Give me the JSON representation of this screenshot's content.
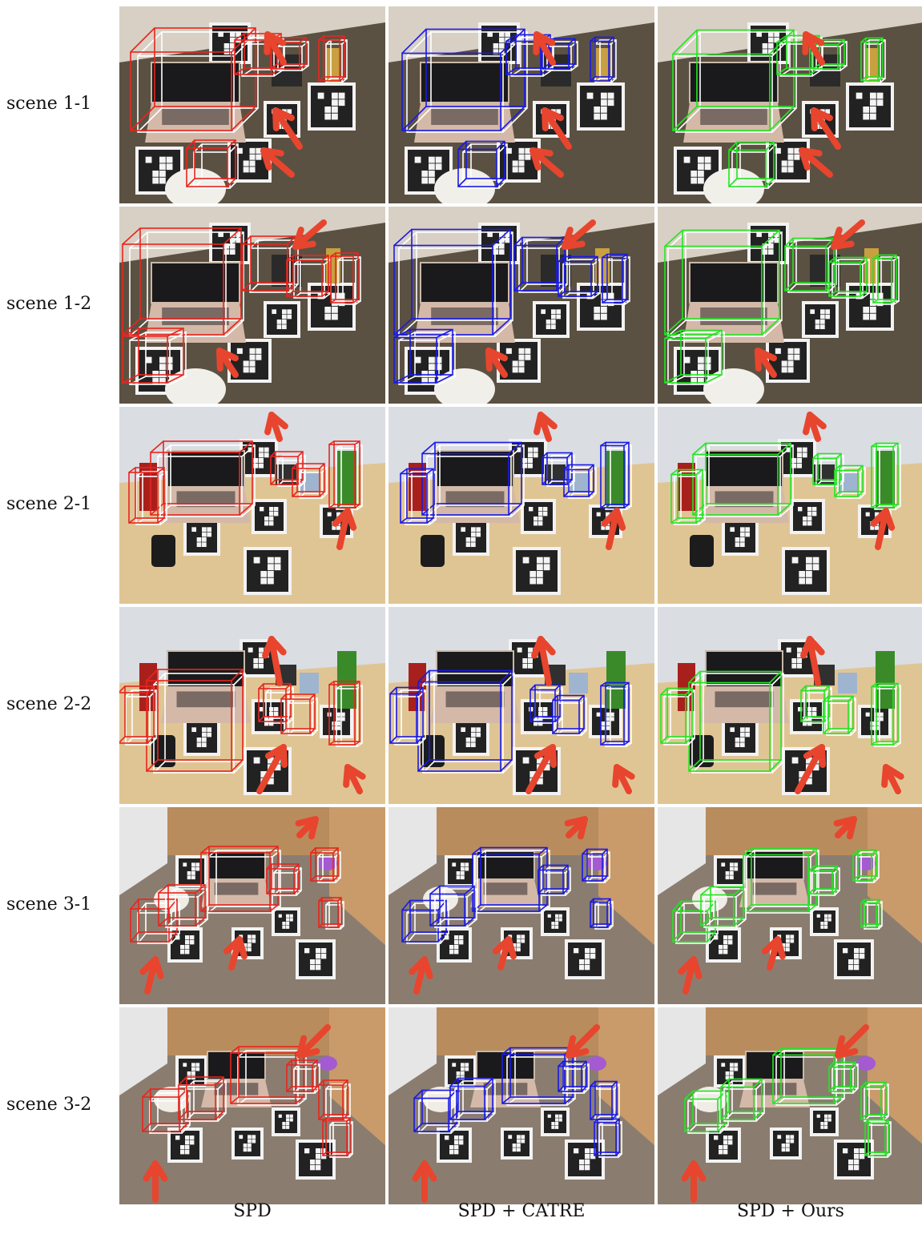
{
  "rows": [
    {
      "label": "scene 1-1",
      "theme": "carpet"
    },
    {
      "label": "scene 1-2",
      "theme": "carpet"
    },
    {
      "label": "scene 2-1",
      "theme": "table"
    },
    {
      "label": "scene 2-2",
      "theme": "table"
    },
    {
      "label": "scene 3-1",
      "theme": "floor"
    },
    {
      "label": "scene 3-2",
      "theme": "floor"
    }
  ],
  "columns": [
    {
      "label": "SPD",
      "box_color": "#e8251f"
    },
    {
      "label": "SPD + CATRE",
      "box_color": "#1a1ae6"
    },
    {
      "label": "SPD + Ours",
      "box_color": "#22e622"
    }
  ],
  "colors": {
    "arrow": "#e8452e",
    "ground_truth_box": "#ffffff",
    "carpet": "#5b5142",
    "wall": "#d8d0c4",
    "table": "#e0c594",
    "floor": "#8a7d70",
    "cabinet": "#b98c5e",
    "marker_board": "#222222"
  }
}
